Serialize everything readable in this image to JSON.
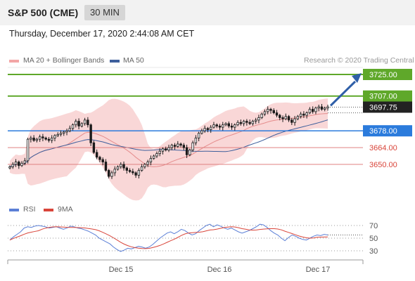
{
  "header": {
    "symbol": "S&P 500 (CME)",
    "timeframe": "30 MIN"
  },
  "datetime": "Thursday, December 17, 2020 2:44:08 AM CET",
  "legend": {
    "ma20": "MA 20 + Bollinger Bands",
    "ma50": "MA 50",
    "rsi": "RSI",
    "ma9": "9MA"
  },
  "credit": "Research © 2020 Trading Central",
  "colors": {
    "green": "#5fa82a",
    "blue": "#2b7bdc",
    "red": "#d9453a",
    "dark": "#222222",
    "candle": "#1a1a1a",
    "band": "#f7c9c9",
    "ma50": "#3e5f9c",
    "rsi": "#5b7fd6",
    "rsi_ma": "#d9453a"
  },
  "chart_data": {
    "type": "candlestick",
    "price_range": [
      3632,
      3738
    ],
    "levels": [
      {
        "value": 3725.0,
        "label": "3725.00",
        "style": "green-box"
      },
      {
        "value": 3707.0,
        "label": "3707.00",
        "style": "green-box"
      },
      {
        "value": 3697.75,
        "label": "3697.75",
        "style": "dark-box"
      },
      {
        "value": 3678.0,
        "label": "3678.00",
        "style": "blue-box"
      },
      {
        "value": 3664.0,
        "label": "3664.00",
        "style": "red-text"
      },
      {
        "value": 3650.0,
        "label": "3650.00",
        "style": "red-text"
      }
    ],
    "x_labels": [
      "Dec 15",
      "Dec 16",
      "Dec 17"
    ],
    "candles": [
      3648,
      3650,
      3652,
      3649,
      3651,
      3653,
      3671,
      3672,
      3670,
      3671,
      3673,
      3672,
      3671,
      3670,
      3672,
      3674,
      3675,
      3676,
      3677,
      3678,
      3680,
      3683,
      3686,
      3682,
      3684,
      3687,
      3683,
      3668,
      3660,
      3656,
      3654,
      3652,
      3645,
      3640,
      3643,
      3646,
      3648,
      3650,
      3647,
      3645,
      3644,
      3643,
      3641,
      3645,
      3648,
      3650,
      3652,
      3655,
      3657,
      3659,
      3661,
      3663,
      3662,
      3664,
      3666,
      3665,
      3667,
      3666,
      3664,
      3658,
      3662,
      3668,
      3672,
      3676,
      3678,
      3680,
      3679,
      3681,
      3683,
      3682,
      3681,
      3683,
      3684,
      3682,
      3681,
      3683,
      3685,
      3684,
      3686,
      3685,
      3684,
      3686,
      3687,
      3689,
      3692,
      3694,
      3696,
      3695,
      3693,
      3691,
      3689,
      3688,
      3690,
      3687,
      3685,
      3688,
      3690,
      3692,
      3691,
      3693,
      3696,
      3694,
      3697,
      3698,
      3696,
      3697,
      3698
    ],
    "rsi_levels": [
      70,
      50,
      30
    ],
    "rsi": [
      47,
      52,
      56,
      60,
      66,
      68,
      67,
      69,
      70,
      69,
      68,
      66,
      67,
      68,
      66,
      64,
      66,
      69,
      68,
      66,
      65,
      63,
      61,
      58,
      55,
      50,
      47,
      44,
      41,
      36,
      32,
      29,
      31,
      34,
      33,
      35,
      37,
      36,
      34,
      36,
      40,
      45,
      50,
      54,
      58,
      60,
      57,
      60,
      64,
      62,
      58,
      55,
      57,
      62,
      66,
      70,
      72,
      68,
      71,
      69,
      66,
      64,
      66,
      63,
      60,
      58,
      60,
      62,
      65,
      68,
      72,
      71,
      67,
      62,
      58,
      55,
      50,
      46,
      51,
      55,
      53,
      50,
      48,
      47,
      50,
      53,
      55,
      54,
      56,
      55
    ]
  }
}
